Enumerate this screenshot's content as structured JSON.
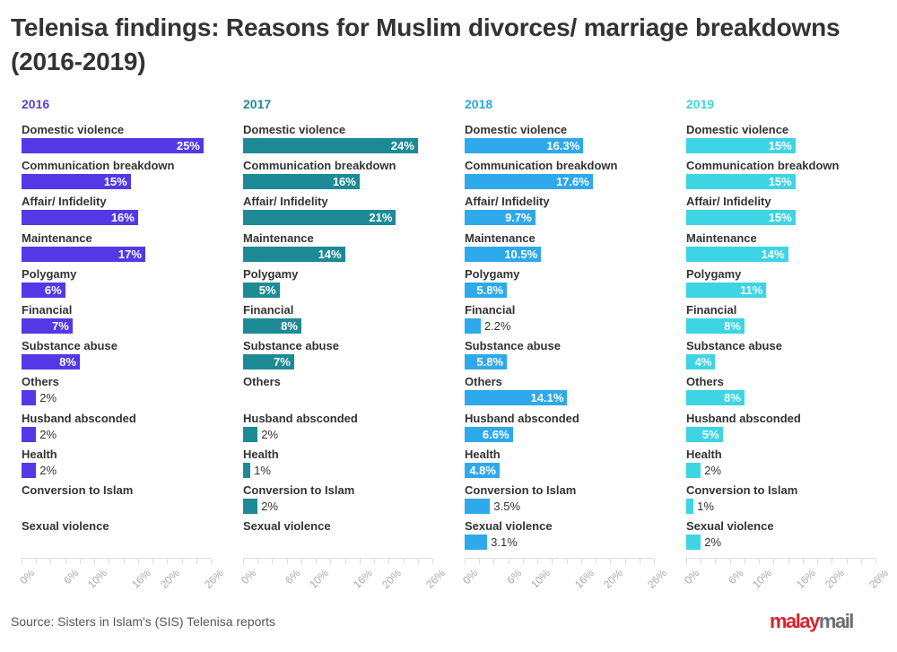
{
  "header": {
    "title": "Telenisa findings: Reasons for Muslim divorces/ marriage breakdowns (2016-2019)"
  },
  "footer": {
    "source": "Source: Sisters in Islam's (SIS) Telenisa reports",
    "logo_part1": "malay",
    "logo_part2": "mail"
  },
  "chart_data": {
    "type": "bar",
    "orientation": "horizontal",
    "layout": "small-multiples",
    "title": "Telenisa findings: Reasons for Muslim divorces/ marriage breakdowns (2016-2019)",
    "xlabel": "",
    "ylabel": "",
    "xlim": [
      0,
      26
    ],
    "x_ticks": [
      "0%",
      "6%",
      "10%",
      "16%",
      "20%",
      "26%"
    ],
    "x_tick_values": [
      0,
      6,
      10,
      16,
      20,
      26
    ],
    "minor_tick_step": 2,
    "grid": false,
    "categories": [
      "Domestic violence",
      "Communication breakdown",
      "Affair/ Infidelity",
      "Maintenance",
      "Polygamy",
      "Financial",
      "Substance abuse",
      "Others",
      "Husband absconded",
      "Health",
      "Conversion to Islam",
      "Sexual violence"
    ],
    "series": [
      {
        "name": "2016",
        "color": "#5438e6",
        "label_color": "#5b3fd8",
        "values": [
          25,
          15,
          16,
          17,
          6,
          7,
          8,
          2,
          2,
          2,
          null,
          null
        ],
        "labels": [
          "25%",
          "15%",
          "16%",
          "17%",
          "6%",
          "7%",
          "8%",
          "2%",
          "2%",
          "2%",
          "",
          ""
        ]
      },
      {
        "name": "2017",
        "color": "#1e8a96",
        "label_color": "#1f8a96",
        "values": [
          24,
          16,
          21,
          14,
          5,
          8,
          7,
          null,
          2,
          1,
          2,
          null
        ],
        "labels": [
          "24%",
          "16%",
          "21%",
          "14%",
          "5%",
          "8%",
          "7%",
          "",
          "2%",
          "1%",
          "2%",
          ""
        ]
      },
      {
        "name": "2018",
        "color": "#2ea9eb",
        "label_color": "#2aa8e6",
        "values": [
          16.3,
          17.6,
          9.7,
          10.5,
          5.8,
          2.2,
          5.8,
          14.1,
          6.6,
          4.8,
          3.5,
          3.1
        ],
        "labels": [
          "16.3%",
          "17.6%",
          "9.7%",
          "10.5%",
          "5.8%",
          "2.2%",
          "5.8%",
          "14.1%",
          "6.6%",
          "4.8%",
          "3.5%",
          "3.1%"
        ]
      },
      {
        "name": "2019",
        "color": "#3dd5e3",
        "label_color": "#3fd3e0",
        "values": [
          15,
          15,
          15,
          14,
          11,
          8,
          4,
          8,
          5,
          2,
          1,
          2
        ],
        "labels": [
          "15%",
          "15%",
          "15%",
          "14%",
          "11%",
          "8%",
          "4%",
          "8%",
          "5%",
          "2%",
          "1%",
          "2%"
        ]
      }
    ]
  }
}
